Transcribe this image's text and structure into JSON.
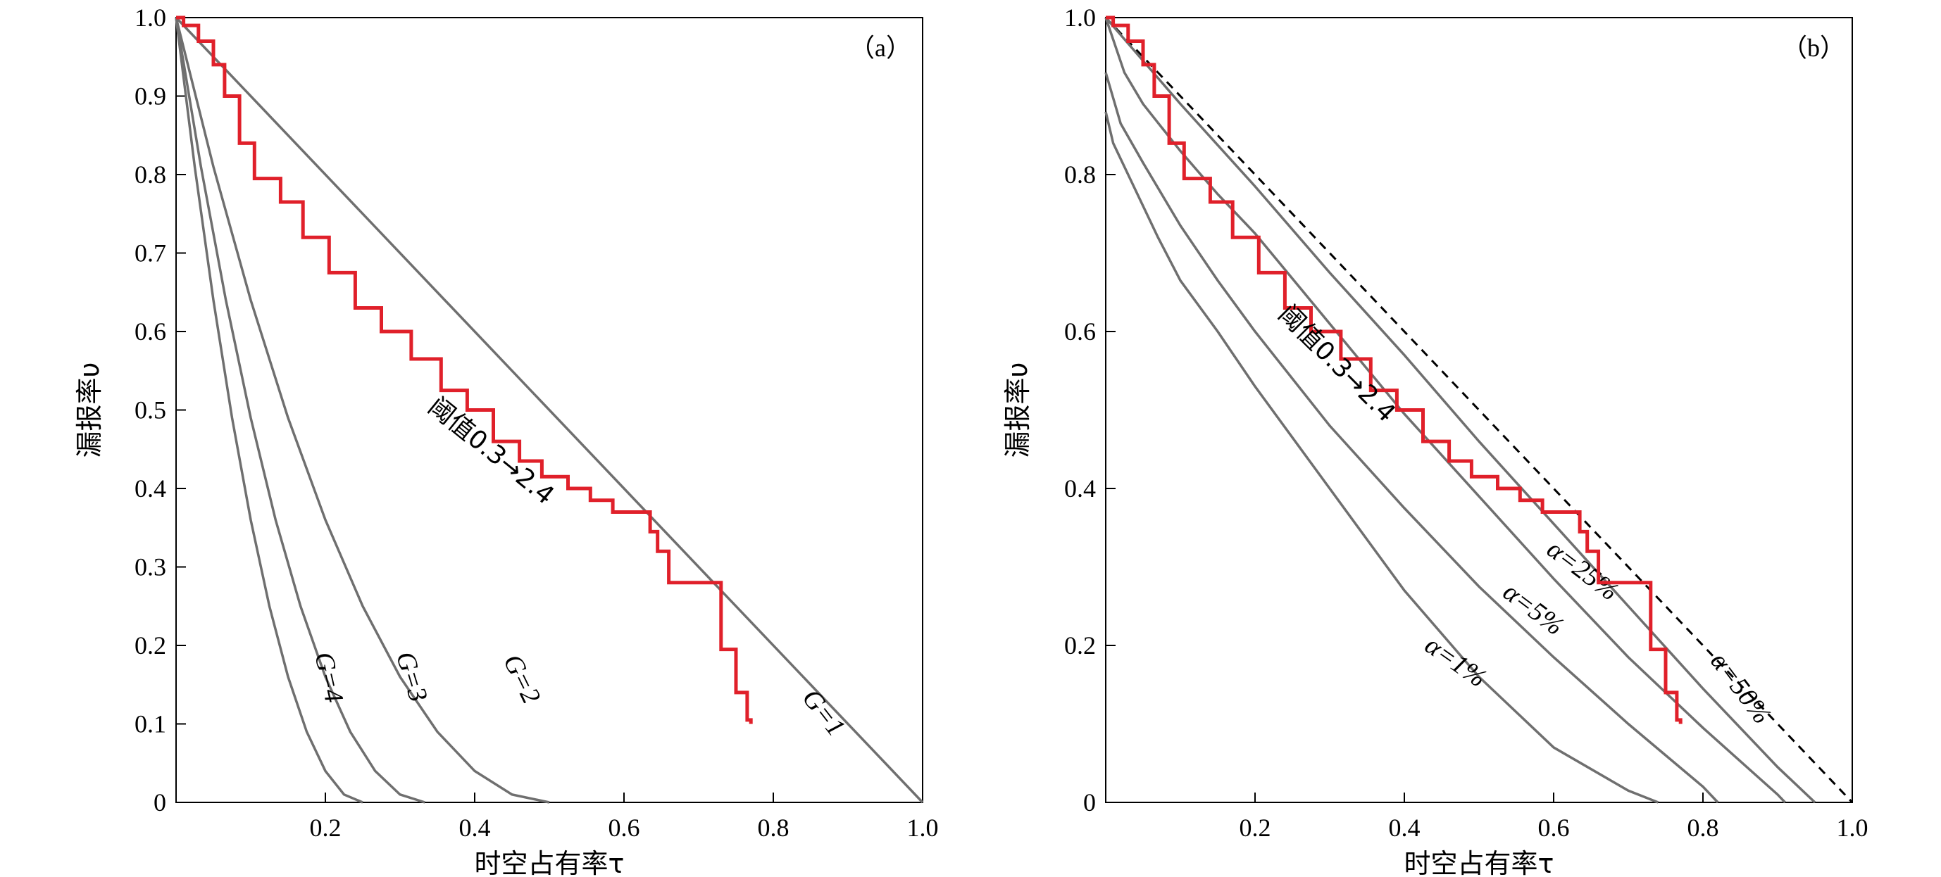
{
  "chart_data": [
    {
      "type": "line",
      "panel_tag": "（a）",
      "xlabel": "时空占有率τ",
      "ylabel": "漏报率υ",
      "xlim": [
        0,
        1.0
      ],
      "ylim": [
        0,
        1.0
      ],
      "xticks": [
        "0.2",
        "0.4",
        "0.6",
        "0.8",
        "1.0"
      ],
      "yticks": [
        "0",
        "0.1",
        "0.2",
        "0.3",
        "0.4",
        "0.5",
        "0.6",
        "0.7",
        "0.8",
        "0.9",
        "1.0"
      ],
      "series": [
        {
          "name": "G=1",
          "label": "G=1",
          "style": "gray",
          "x": [
            0,
            1.0
          ],
          "y": [
            1.0,
            0
          ]
        },
        {
          "name": "G=2",
          "label": "G=2",
          "style": "gray",
          "x": [
            0,
            0.05,
            0.1,
            0.15,
            0.2,
            0.25,
            0.3,
            0.35,
            0.4,
            0.45,
            0.5
          ],
          "y": [
            1.0,
            0.81,
            0.64,
            0.49,
            0.36,
            0.25,
            0.16,
            0.09,
            0.04,
            0.01,
            0
          ]
        },
        {
          "name": "G=3",
          "label": "G=3",
          "style": "gray",
          "x": [
            0,
            0.0333,
            0.0667,
            0.1,
            0.1333,
            0.1667,
            0.2,
            0.2333,
            0.2667,
            0.3,
            0.3333
          ],
          "y": [
            1.0,
            0.81,
            0.64,
            0.49,
            0.36,
            0.25,
            0.16,
            0.09,
            0.04,
            0.01,
            0
          ]
        },
        {
          "name": "G=4",
          "label": "G=4",
          "style": "gray",
          "x": [
            0,
            0.025,
            0.05,
            0.075,
            0.1,
            0.125,
            0.15,
            0.175,
            0.2,
            0.225,
            0.25
          ],
          "y": [
            1.0,
            0.81,
            0.64,
            0.49,
            0.36,
            0.25,
            0.16,
            0.09,
            0.04,
            0.01,
            0
          ]
        },
        {
          "name": "阈值0.3→2.4",
          "label": "阈值0.3→2.4",
          "style": "red-step",
          "x": [
            0,
            0.01,
            0.03,
            0.05,
            0.065,
            0.085,
            0.105,
            0.14,
            0.17,
            0.205,
            0.24,
            0.275,
            0.315,
            0.355,
            0.39,
            0.425,
            0.46,
            0.49,
            0.525,
            0.555,
            0.585,
            0.635,
            0.645,
            0.66,
            0.675,
            0.73,
            0.75,
            0.765,
            0.77
          ],
          "y": [
            1.0,
            0.99,
            0.97,
            0.94,
            0.9,
            0.84,
            0.795,
            0.765,
            0.72,
            0.675,
            0.63,
            0.6,
            0.565,
            0.525,
            0.5,
            0.46,
            0.435,
            0.415,
            0.4,
            0.385,
            0.37,
            0.345,
            0.32,
            0.28,
            0.28,
            0.195,
            0.14,
            0.105,
            0.1
          ]
        }
      ]
    },
    {
      "type": "line",
      "panel_tag": "（b）",
      "xlabel": "时空占有率τ",
      "ylabel": "漏报率υ",
      "xlim": [
        0,
        1.0
      ],
      "ylim": [
        0,
        1.0
      ],
      "xticks": [
        "0.2",
        "0.4",
        "0.6",
        "0.8",
        "1.0"
      ],
      "yticks": [
        "0",
        "0.2",
        "0.4",
        "0.6",
        "0.8",
        "1.0"
      ],
      "series": [
        {
          "name": "diagonal",
          "style": "dashed",
          "x": [
            0,
            1.0
          ],
          "y": [
            1.0,
            0
          ]
        },
        {
          "name": "α=50%",
          "label": "α=50%",
          "style": "gray",
          "x": [
            0,
            0.1,
            0.2,
            0.3,
            0.4,
            0.5,
            0.6,
            0.7,
            0.8,
            0.9,
            0.95
          ],
          "y": [
            1.0,
            0.89,
            0.785,
            0.675,
            0.57,
            0.46,
            0.355,
            0.25,
            0.145,
            0.045,
            0
          ]
        },
        {
          "name": "α=25%",
          "label": "α=25%",
          "style": "gray",
          "x": [
            0,
            0.025,
            0.05,
            0.1,
            0.15,
            0.2,
            0.3,
            0.4,
            0.5,
            0.6,
            0.7,
            0.8,
            0.9,
            0.91
          ],
          "y": [
            1.0,
            0.93,
            0.89,
            0.83,
            0.775,
            0.725,
            0.61,
            0.495,
            0.39,
            0.285,
            0.185,
            0.095,
            0.01,
            0
          ]
        },
        {
          "name": "α=5%",
          "label": "α=5%",
          "style": "gray",
          "x": [
            0,
            0.02,
            0.05,
            0.1,
            0.15,
            0.2,
            0.3,
            0.4,
            0.5,
            0.6,
            0.7,
            0.8,
            0.82
          ],
          "y": [
            0.93,
            0.865,
            0.815,
            0.735,
            0.665,
            0.6,
            0.48,
            0.375,
            0.275,
            0.185,
            0.1,
            0.02,
            0
          ]
        },
        {
          "name": "α=1%",
          "label": "α=1%",
          "style": "gray",
          "x": [
            0,
            0.01,
            0.03,
            0.07,
            0.1,
            0.15,
            0.2,
            0.3,
            0.4,
            0.5,
            0.6,
            0.7,
            0.74
          ],
          "y": [
            0.88,
            0.84,
            0.8,
            0.72,
            0.665,
            0.6,
            0.53,
            0.4,
            0.27,
            0.16,
            0.07,
            0.015,
            0
          ]
        },
        {
          "name": "阈值0.3→2.4",
          "label": "阈值0.3→2.4",
          "style": "red-step",
          "x": [
            0,
            0.01,
            0.03,
            0.05,
            0.065,
            0.085,
            0.105,
            0.14,
            0.17,
            0.205,
            0.24,
            0.275,
            0.315,
            0.355,
            0.39,
            0.425,
            0.46,
            0.49,
            0.525,
            0.555,
            0.585,
            0.635,
            0.645,
            0.66,
            0.675,
            0.73,
            0.75,
            0.765,
            0.77
          ],
          "y": [
            1.0,
            0.99,
            0.97,
            0.94,
            0.9,
            0.84,
            0.795,
            0.765,
            0.72,
            0.675,
            0.63,
            0.6,
            0.565,
            0.525,
            0.5,
            0.46,
            0.435,
            0.415,
            0.4,
            0.385,
            0.37,
            0.345,
            0.32,
            0.28,
            0.28,
            0.195,
            0.14,
            0.105,
            0.1
          ]
        }
      ]
    }
  ]
}
